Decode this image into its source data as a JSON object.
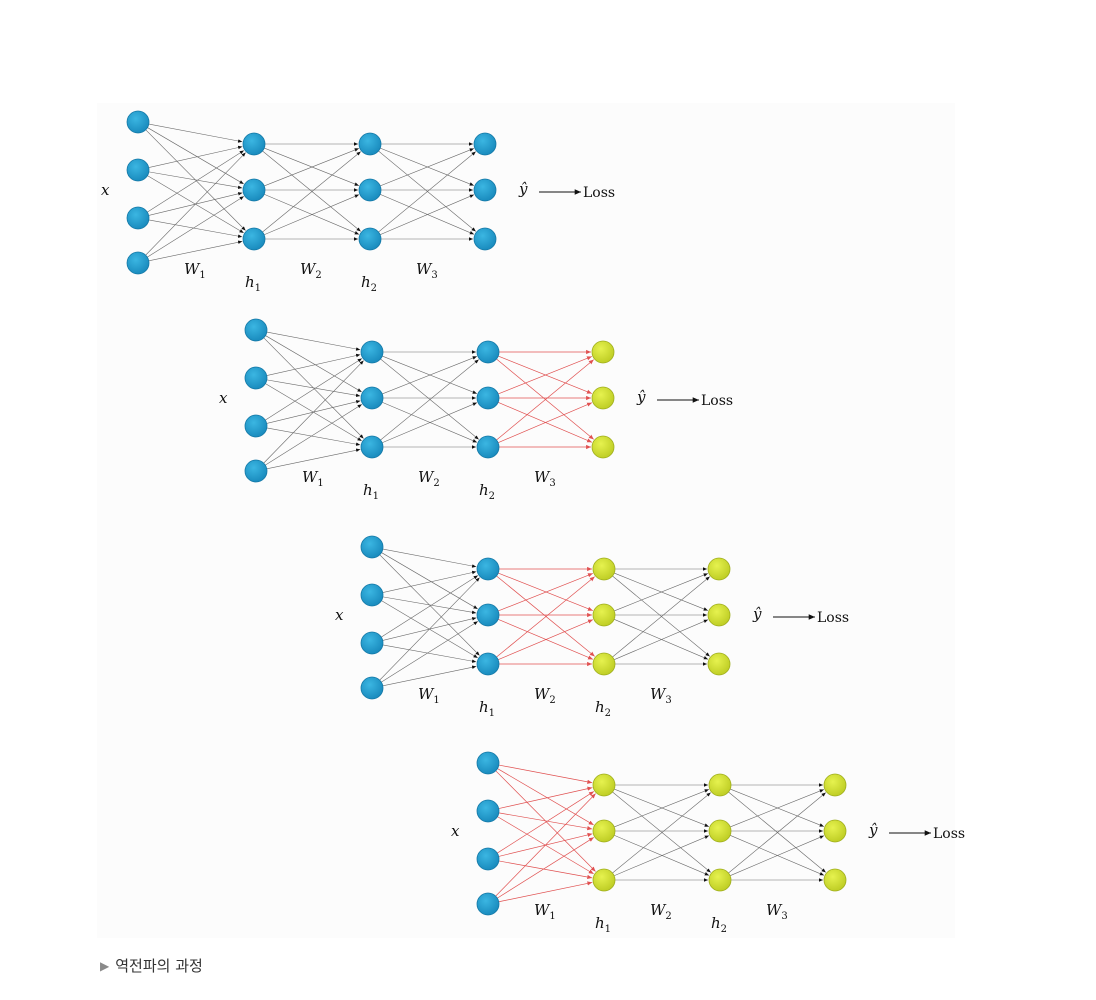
{
  "caption": {
    "marker": "▶",
    "text": "역전파의 과정"
  },
  "colors": {
    "node_blue": "#1f9fd0",
    "node_blue_edge": "#1478a6",
    "node_yellow": "#d7e63a",
    "node_yellow_edge": "#9fae1c",
    "edge_gray": "#6a6a6a",
    "edge_red": "#e05050",
    "arrow_dark": "#111111"
  },
  "labels": {
    "input": "x",
    "output": "ŷ",
    "loss": "Loss",
    "w1": "W",
    "w1_sub": "1",
    "w2": "W",
    "w2_sub": "2",
    "w3": "W",
    "w3_sub": "3",
    "h1": "h",
    "h1_sub": "1",
    "h2": "h",
    "h2_sub": "2"
  },
  "stages": [
    {
      "name": "forward-pass",
      "yellow_layers": [],
      "red_weights": []
    },
    {
      "name": "backprop-w3",
      "yellow_layers": [
        3
      ],
      "red_weights": [
        3
      ]
    },
    {
      "name": "backprop-w2",
      "yellow_layers": [
        2,
        3
      ],
      "red_weights": [
        2
      ]
    },
    {
      "name": "backprop-w1",
      "yellow_layers": [
        1,
        2,
        3
      ],
      "red_weights": [
        1
      ]
    }
  ],
  "layer_sizes": [
    4,
    3,
    3,
    3
  ]
}
